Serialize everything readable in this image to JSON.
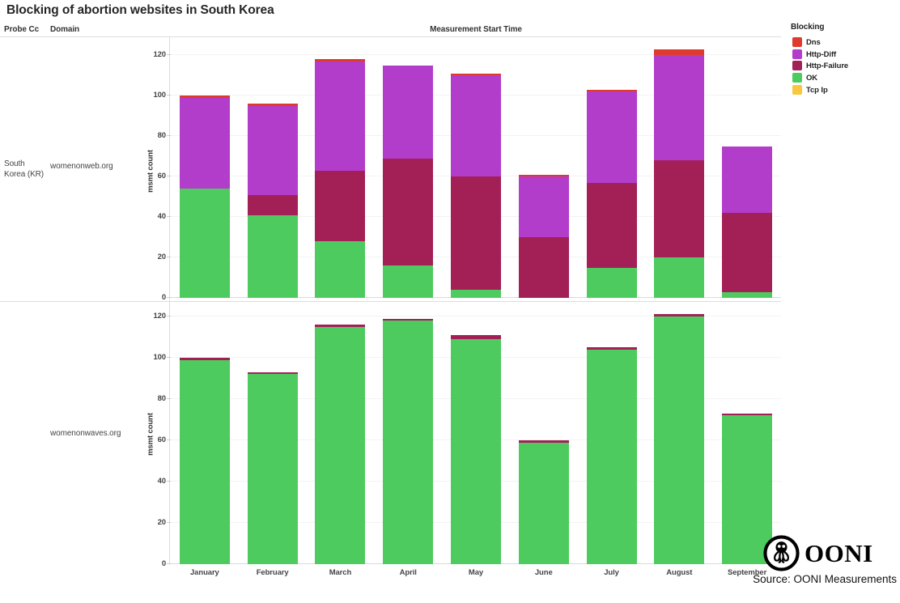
{
  "title": "Blocking of abortion websites in South Korea",
  "columns": {
    "probe_cc": "Probe Cc",
    "domain": "Domain"
  },
  "x_axis_title": "Measurement Start Time",
  "legend": {
    "title": "Blocking",
    "items": [
      {
        "label": "Dns",
        "color": "#e03a2f"
      },
      {
        "label": "Http-Diff",
        "color": "#b33dcb"
      },
      {
        "label": "Http-Failure",
        "color": "#a32057"
      },
      {
        "label": "OK",
        "color": "#4ecb5f"
      },
      {
        "label": "Tcp Ip",
        "color": "#f8c73e"
      }
    ]
  },
  "footer": {
    "brand": "OONI",
    "source": "Source: OONI Measurements"
  },
  "chart_data": [
    {
      "type": "bar",
      "stacked": true,
      "probe_cc": "South Korea (KR)",
      "domain": "womenonweb.org",
      "ylabel": "msmt count",
      "yticks": [
        0,
        20,
        40,
        60,
        80,
        100,
        120
      ],
      "ylim": [
        0,
        125
      ],
      "grid": true,
      "categories": [
        "January",
        "February",
        "March",
        "April",
        "May",
        "June",
        "July",
        "August",
        "September"
      ],
      "series": [
        {
          "name": "OK",
          "color": "#4ecb5f",
          "values": [
            54,
            41,
            28,
            16,
            4,
            0,
            15,
            20,
            3
          ]
        },
        {
          "name": "Http-Failure",
          "color": "#a32057",
          "values": [
            0,
            10,
            35,
            53,
            56,
            30,
            42,
            48,
            39
          ]
        },
        {
          "name": "Http-Diff",
          "color": "#b33dcb",
          "values": [
            45,
            44,
            54,
            46,
            50,
            30,
            45,
            52,
            33
          ]
        },
        {
          "name": "Dns",
          "color": "#e03a2f",
          "values": [
            1,
            1,
            1,
            0,
            1,
            1,
            1,
            3,
            0
          ]
        },
        {
          "name": "Tcp Ip",
          "color": "#f8c73e",
          "values": [
            0,
            0,
            0,
            0,
            0,
            0,
            0,
            0,
            0
          ]
        }
      ],
      "totals": [
        100,
        96,
        118,
        115,
        111,
        61,
        103,
        123,
        75
      ]
    },
    {
      "type": "bar",
      "stacked": true,
      "probe_cc": "South Korea (KR)",
      "domain": "womenonwaves.org",
      "ylabel": "msmt count",
      "yticks": [
        0,
        20,
        40,
        60,
        80,
        100,
        120
      ],
      "ylim": [
        0,
        125
      ],
      "grid": true,
      "categories": [
        "January",
        "February",
        "March",
        "April",
        "May",
        "June",
        "July",
        "August",
        "September"
      ],
      "series": [
        {
          "name": "OK",
          "color": "#4ecb5f",
          "values": [
            99,
            92,
            115,
            118,
            109,
            59,
            104,
            120,
            72
          ]
        },
        {
          "name": "Http-Failure",
          "color": "#a32057",
          "values": [
            1,
            1,
            1,
            1,
            2,
            1,
            1,
            1,
            1
          ]
        },
        {
          "name": "Http-Diff",
          "color": "#b33dcb",
          "values": [
            0,
            0,
            0,
            0,
            0,
            0,
            0,
            0,
            0
          ]
        },
        {
          "name": "Dns",
          "color": "#e03a2f",
          "values": [
            0,
            0,
            0,
            0,
            0,
            0,
            0,
            0,
            0
          ]
        },
        {
          "name": "Tcp Ip",
          "color": "#f8c73e",
          "values": [
            0,
            0,
            0,
            0,
            0,
            0,
            0,
            0,
            0
          ]
        }
      ],
      "totals": [
        100,
        93,
        116,
        119,
        111,
        60,
        105,
        121,
        73
      ]
    }
  ]
}
